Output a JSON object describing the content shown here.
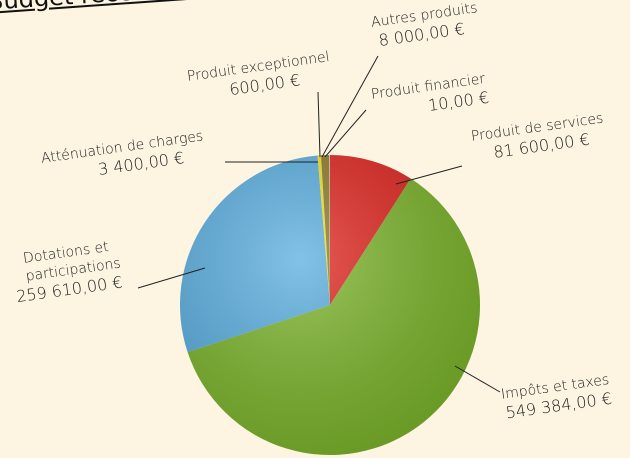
{
  "chart_data": {
    "type": "pie",
    "title": "Budget recettes de",
    "categories": [
      "Produit de services",
      "Impôts et taxes",
      "Dotations et participations",
      "Atténuation de charges",
      "Autres produits",
      "Produit exceptionnel",
      "Produit financier"
    ],
    "values": [
      81600,
      549384,
      259610,
      3400,
      8000,
      600,
      10
    ],
    "value_labels": [
      "81 600,00 €",
      "549 384,00 €",
      "259 610,00 €",
      "3 400,00 €",
      "8 000,00 €",
      "600,00 €",
      "10,00 €"
    ],
    "colors": [
      "#e1251f",
      "#7cb52b",
      "#5aaee0",
      "#f1e321",
      "#8c7a2a",
      "#f5f0d0",
      "#ffffff"
    ]
  }
}
